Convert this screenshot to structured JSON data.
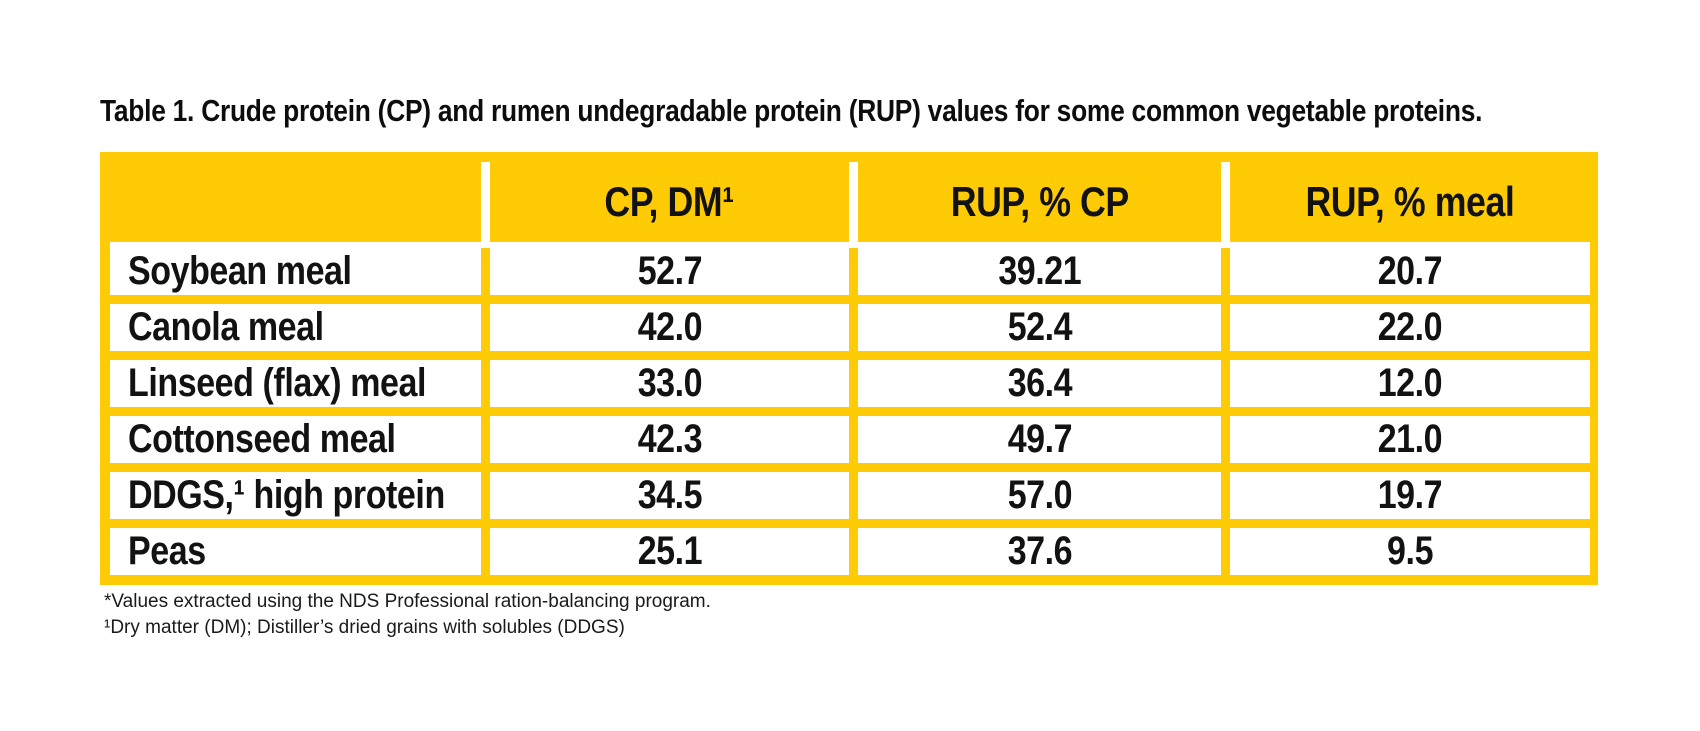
{
  "title": "Table 1. Crude protein (CP) and rumen undegradable protein (RUP) values for some common vegetable proteins.",
  "colors": {
    "accent_yellow": "#FFCB05",
    "text_black": "#121212",
    "background": "#FFFFFF"
  },
  "table": {
    "columns": [
      "",
      "CP, DM¹",
      "RUP, % CP",
      "RUP, % meal"
    ],
    "rows": [
      {
        "label": "Soybean meal",
        "cp_dm": "52.7",
        "rup_cp": "39.21",
        "rup_meal": "20.7"
      },
      {
        "label": "Canola meal",
        "cp_dm": "42.0",
        "rup_cp": "52.4",
        "rup_meal": "22.0"
      },
      {
        "label": "Linseed (flax) meal",
        "cp_dm": "33.0",
        "rup_cp": "36.4",
        "rup_meal": "12.0"
      },
      {
        "label": "Cottonseed meal",
        "cp_dm": "42.3",
        "rup_cp": "49.7",
        "rup_meal": "21.0"
      },
      {
        "label": "DDGS,¹ high protein",
        "cp_dm": "34.5",
        "rup_cp": "57.0",
        "rup_meal": "19.7"
      },
      {
        "label": "Peas",
        "cp_dm": "25.1",
        "rup_cp": "37.6",
        "rup_meal": "9.5"
      }
    ]
  },
  "chart_data": {
    "type": "table",
    "title": "Table 1. Crude protein (CP) and rumen undegradable protein (RUP) values for some common vegetable proteins.",
    "columns": [
      "",
      "CP, DM¹",
      "RUP, % CP",
      "RUP, % meal"
    ],
    "rows": [
      [
        "Soybean meal",
        52.7,
        39.21,
        20.7
      ],
      [
        "Canola meal",
        42.0,
        52.4,
        22.0
      ],
      [
        "Linseed (flax) meal",
        33.0,
        36.4,
        12.0
      ],
      [
        "Cottonseed meal",
        42.3,
        49.7,
        21.0
      ],
      [
        "DDGS,¹ high protein",
        34.5,
        57.0,
        19.7
      ],
      [
        "Peas",
        25.1,
        37.6,
        9.5
      ]
    ]
  },
  "footnotes": [
    "*Values extracted using the NDS Professional ration-balancing program.",
    "¹Dry matter (DM); Distiller’s dried grains with solubles (DDGS)"
  ]
}
